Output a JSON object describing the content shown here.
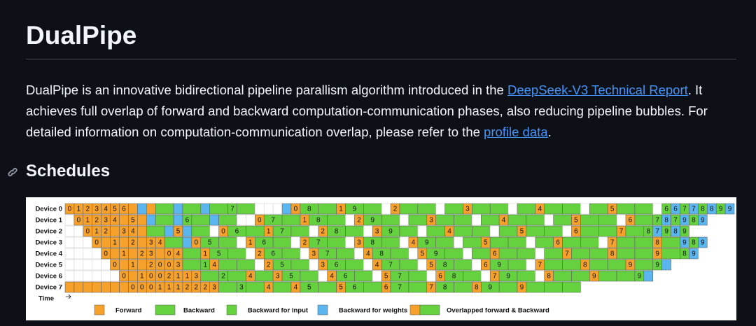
{
  "header": {
    "title": "DualPipe"
  },
  "intro": {
    "parts": [
      {
        "text": "DualPipe is an innovative bidirectional pipeline parallism algorithm introduced in the "
      },
      {
        "link": "DeepSeek-V3 Technical Report"
      },
      {
        "text": ". It achieves full overlap of forward and backward computation-communication phases, also reducing pipeline bubbles. For detailed information on computation-communication overlap, please refer to the "
      },
      {
        "link": "profile data"
      },
      {
        "text": "."
      }
    ]
  },
  "section": {
    "title": "Schedules"
  },
  "schedule": {
    "colors": {
      "F": "#f5a12b",
      "B": "#66d13f",
      "I": "#66d13f",
      "W": "#5bb6f0",
      "E": "#ffffff"
    },
    "time_label": "Time",
    "legend": [
      {
        "type": "F",
        "label": "Forward"
      },
      {
        "type": "B",
        "label": "Backward"
      },
      {
        "type": "I",
        "label": "Backward for input"
      },
      {
        "type": "W",
        "label": "Backward for weights"
      },
      {
        "type": "O",
        "label": "Overlapped forward & Backward"
      }
    ],
    "devices": [
      {
        "label": "Device 0",
        "cells": [
          [
            "F",
            "0"
          ],
          [
            "F",
            "1"
          ],
          [
            "F",
            "2"
          ],
          [
            "F",
            "3"
          ],
          [
            "F",
            "4"
          ],
          [
            "F",
            "5"
          ],
          [
            "F",
            "6"
          ],
          [
            "F"
          ],
          [
            "W"
          ],
          [
            "F"
          ],
          [
            "B"
          ],
          [
            "W"
          ],
          [
            "B"
          ],
          [
            "W"
          ],
          [
            "B"
          ],
          [
            "I",
            "7"
          ],
          [
            "B"
          ],
          [
            "E"
          ],
          [
            "E"
          ],
          [
            "E"
          ],
          [
            "W"
          ],
          [
            "O",
            "0",
            "8"
          ],
          [
            "B"
          ],
          [
            "O",
            "1",
            "9"
          ],
          [
            "B"
          ],
          [
            "E"
          ],
          [
            "O",
            "2"
          ],
          [
            "B"
          ],
          [
            "E"
          ],
          [
            "B"
          ],
          [
            "O",
            "3"
          ],
          [
            "B"
          ],
          [
            "E"
          ],
          [
            "B"
          ],
          [
            "O",
            "4"
          ],
          [
            "B"
          ],
          [
            "E"
          ],
          [
            "B"
          ],
          [
            "O",
            "5"
          ],
          [
            "B"
          ],
          [
            "E"
          ],
          [
            "I",
            "6"
          ],
          [
            "W",
            "6"
          ],
          [
            "I",
            "7"
          ],
          [
            "W",
            "7"
          ],
          [
            "I",
            "8"
          ],
          [
            "W",
            "8"
          ],
          [
            "I",
            "9"
          ],
          [
            "W",
            "9"
          ]
        ]
      },
      {
        "label": "Device 1",
        "cells": [
          [
            "E"
          ],
          [
            "F",
            "0"
          ],
          [
            "F",
            "1"
          ],
          [
            "F",
            "2"
          ],
          [
            "F",
            "3"
          ],
          [
            "F",
            "4"
          ],
          [
            "F"
          ],
          [
            "F",
            "5"
          ],
          [
            "F"
          ],
          [
            "W"
          ],
          [
            "B"
          ],
          [
            "W"
          ],
          [
            "I",
            "6"
          ],
          [
            "B"
          ],
          [
            "W"
          ],
          [
            "B"
          ],
          [
            "E"
          ],
          [
            "E"
          ],
          [
            "O",
            "0",
            "7"
          ],
          [
            "B"
          ],
          [
            "O",
            "1",
            "8"
          ],
          [
            "B"
          ],
          [
            "E"
          ],
          [
            "O",
            "2",
            "9"
          ],
          [
            "B"
          ],
          [
            "E"
          ],
          [
            "B"
          ],
          [
            "O",
            "3"
          ],
          [
            "B"
          ],
          [
            "E"
          ],
          [
            "B"
          ],
          [
            "O",
            "4"
          ],
          [
            "B"
          ],
          [
            "E"
          ],
          [
            "B"
          ],
          [
            "O",
            "5"
          ],
          [
            "B"
          ],
          [
            "E"
          ],
          [
            "O",
            "6"
          ],
          [
            "I",
            "7"
          ],
          [
            "W",
            "8"
          ],
          [
            "I",
            "7"
          ],
          [
            "W",
            "9"
          ],
          [
            "I",
            "8"
          ],
          [
            "W",
            "9"
          ]
        ]
      },
      {
        "label": "Device 2",
        "cells": [
          [
            "E"
          ],
          [
            "E"
          ],
          [
            "F",
            "0"
          ],
          [
            "F",
            "1"
          ],
          [
            "F",
            "2"
          ],
          [
            "F"
          ],
          [
            "F",
            "3"
          ],
          [
            "F",
            "4"
          ],
          [
            "F"
          ],
          [
            "B"
          ],
          [
            "W"
          ],
          [
            "F",
            "5"
          ],
          [
            "W"
          ],
          [
            "B"
          ],
          [
            "E"
          ],
          [
            "O",
            "0",
            "6"
          ],
          [
            "B"
          ],
          [
            "O",
            "1",
            "7"
          ],
          [
            "B"
          ],
          [
            "E"
          ],
          [
            "O",
            "2",
            "8"
          ],
          [
            "B"
          ],
          [
            "E"
          ],
          [
            "O",
            "3",
            "9"
          ],
          [
            "B"
          ],
          [
            "E"
          ],
          [
            "B"
          ],
          [
            "O",
            "4"
          ],
          [
            "B"
          ],
          [
            "E"
          ],
          [
            "B"
          ],
          [
            "O",
            "5"
          ],
          [
            "B"
          ],
          [
            "E"
          ],
          [
            "O",
            "6"
          ],
          [
            "B"
          ],
          [
            "O",
            "7"
          ],
          [
            "I",
            "8"
          ],
          [
            "W",
            "7"
          ],
          [
            "I",
            "9"
          ],
          [
            "W",
            "8"
          ],
          [
            "I",
            "9"
          ]
        ]
      },
      {
        "label": "Device 3",
        "cells": [
          [
            "E"
          ],
          [
            "E"
          ],
          [
            "E"
          ],
          [
            "F",
            "0"
          ],
          [
            "F"
          ],
          [
            "F",
            "1"
          ],
          [
            "F"
          ],
          [
            "F",
            "2"
          ],
          [
            "F"
          ],
          [
            "F",
            "3"
          ],
          [
            "F",
            "4"
          ],
          [
            "B"
          ],
          [
            "W"
          ],
          [
            "O",
            "0",
            "5"
          ],
          [
            "B"
          ],
          [
            "E"
          ],
          [
            "O",
            "1",
            "6"
          ],
          [
            "B"
          ],
          [
            "E"
          ],
          [
            "O",
            "2",
            "7"
          ],
          [
            "B"
          ],
          [
            "E"
          ],
          [
            "O",
            "3",
            "8"
          ],
          [
            "B"
          ],
          [
            "E"
          ],
          [
            "O",
            "4",
            "9"
          ],
          [
            "B"
          ],
          [
            "E"
          ],
          [
            "B"
          ],
          [
            "O",
            "5"
          ],
          [
            "B"
          ],
          [
            "E"
          ],
          [
            "B"
          ],
          [
            "O",
            "6"
          ],
          [
            "B"
          ],
          [
            "E"
          ],
          [
            "O",
            "7"
          ],
          [
            "B"
          ],
          [
            "O",
            "8"
          ],
          [
            "W",
            "9"
          ],
          [
            "I",
            "8"
          ],
          [
            "W",
            "9"
          ]
        ]
      },
      {
        "label": "Device 4",
        "cells": [
          [
            "E"
          ],
          [
            "E"
          ],
          [
            "E"
          ],
          [
            "E"
          ],
          [
            "F",
            "0"
          ],
          [
            "F"
          ],
          [
            "F",
            "1"
          ],
          [
            "F"
          ],
          [
            "F",
            "2"
          ],
          [
            "F",
            "3"
          ],
          [
            "F"
          ],
          [
            "F",
            "0"
          ],
          [
            "F",
            "4"
          ],
          [
            "B"
          ],
          [
            "O",
            "1",
            "5"
          ],
          [
            "B"
          ],
          [
            "E"
          ],
          [
            "O",
            "2",
            "6"
          ],
          [
            "B"
          ],
          [
            "E"
          ],
          [
            "O",
            "3",
            "7"
          ],
          [
            "B"
          ],
          [
            "E"
          ],
          [
            "O",
            "4",
            "8"
          ],
          [
            "B"
          ],
          [
            "E"
          ],
          [
            "O",
            "5",
            "9"
          ],
          [
            "B"
          ],
          [
            "E"
          ],
          [
            "B"
          ],
          [
            "O",
            "6"
          ],
          [
            "B"
          ],
          [
            "E"
          ],
          [
            "B"
          ],
          [
            "O",
            "7"
          ],
          [
            "B"
          ],
          [
            "O",
            "8"
          ],
          [
            "B"
          ],
          [
            "O",
            "9"
          ],
          [
            "I",
            "8"
          ],
          [
            "W",
            "9"
          ]
        ]
      },
      {
        "label": "Device 5",
        "cells": [
          [
            "E"
          ],
          [
            "E"
          ],
          [
            "E"
          ],
          [
            "E"
          ],
          [
            "E"
          ],
          [
            "F",
            "0"
          ],
          [
            "F"
          ],
          [
            "F",
            "1"
          ],
          [
            "F"
          ],
          [
            "F",
            "2"
          ],
          [
            "F",
            "0"
          ],
          [
            "F",
            "0"
          ],
          [
            "F",
            "3"
          ],
          [
            "B"
          ],
          [
            "I",
            "1"
          ],
          [
            "O",
            "4"
          ],
          [
            "B"
          ],
          [
            "E"
          ],
          [
            "O",
            "2",
            "5"
          ],
          [
            "B"
          ],
          [
            "E"
          ],
          [
            "O",
            "3",
            "6"
          ],
          [
            "B"
          ],
          [
            "E"
          ],
          [
            "O",
            "4",
            "7"
          ],
          [
            "B"
          ],
          [
            "E"
          ],
          [
            "O",
            "5",
            "8"
          ],
          [
            "B"
          ],
          [
            "E"
          ],
          [
            "O",
            "6",
            "9"
          ],
          [
            "B"
          ],
          [
            "E"
          ],
          [
            "O",
            "7"
          ],
          [
            "B"
          ],
          [
            "O",
            "8"
          ],
          [
            "B"
          ],
          [
            "O",
            "9"
          ],
          [
            "I",
            "9"
          ],
          [
            "W"
          ]
        ]
      },
      {
        "label": "Device 6",
        "cells": [
          [
            "E"
          ],
          [
            "E"
          ],
          [
            "E"
          ],
          [
            "E"
          ],
          [
            "E"
          ],
          [
            "E"
          ],
          [
            "F",
            "0"
          ],
          [
            "F"
          ],
          [
            "F",
            "1"
          ],
          [
            "F",
            "0"
          ],
          [
            "F",
            "0"
          ],
          [
            "F",
            "2"
          ],
          [
            "F",
            "1"
          ],
          [
            "F",
            "1"
          ],
          [
            "F",
            "3"
          ],
          [
            "B"
          ],
          [
            "I",
            "2"
          ],
          [
            "B"
          ],
          [
            "F",
            "4"
          ],
          [
            "B"
          ],
          [
            "O",
            "3",
            "5"
          ],
          [
            "B"
          ],
          [
            "E"
          ],
          [
            "O",
            "4",
            "6"
          ],
          [
            "B"
          ],
          [
            "E"
          ],
          [
            "O",
            "5",
            "7"
          ],
          [
            "B"
          ],
          [
            "E"
          ],
          [
            "O",
            "6",
            "8"
          ],
          [
            "B"
          ],
          [
            "E"
          ],
          [
            "O",
            "7",
            "9"
          ],
          [
            "B"
          ],
          [
            "E"
          ],
          [
            "O",
            "8"
          ],
          [
            "B"
          ],
          [
            "O",
            "9"
          ],
          [
            "B"
          ],
          [
            "I",
            "9"
          ],
          [
            "W"
          ]
        ]
      },
      {
        "label": "Device 7",
        "cells": [
          [
            "F"
          ],
          [
            "F"
          ],
          [
            "F"
          ],
          [
            "F"
          ],
          [
            "F"
          ],
          [
            "F"
          ],
          [
            "F"
          ],
          [
            "F",
            "0"
          ],
          [
            "F",
            "0"
          ],
          [
            "F",
            "0"
          ],
          [
            "F",
            "1"
          ],
          [
            "F",
            "1"
          ],
          [
            "F",
            "1"
          ],
          [
            "F",
            "2"
          ],
          [
            "F",
            "2"
          ],
          [
            "F",
            "2"
          ],
          [
            "F",
            "3"
          ],
          [
            "B"
          ],
          [
            "I",
            "3"
          ],
          [
            "B"
          ],
          [
            "F",
            "4"
          ],
          [
            "B"
          ],
          [
            "O",
            "4",
            "5"
          ],
          [
            "B"
          ],
          [
            "O",
            "5",
            "6"
          ],
          [
            "B"
          ],
          [
            "O",
            "6",
            "7"
          ],
          [
            "B"
          ],
          [
            "O",
            "7",
            "8"
          ],
          [
            "B"
          ],
          [
            "O",
            "8",
            "9"
          ],
          [
            "B"
          ],
          [
            "O",
            "9"
          ],
          [
            "B"
          ],
          [
            "B"
          ]
        ]
      }
    ]
  }
}
